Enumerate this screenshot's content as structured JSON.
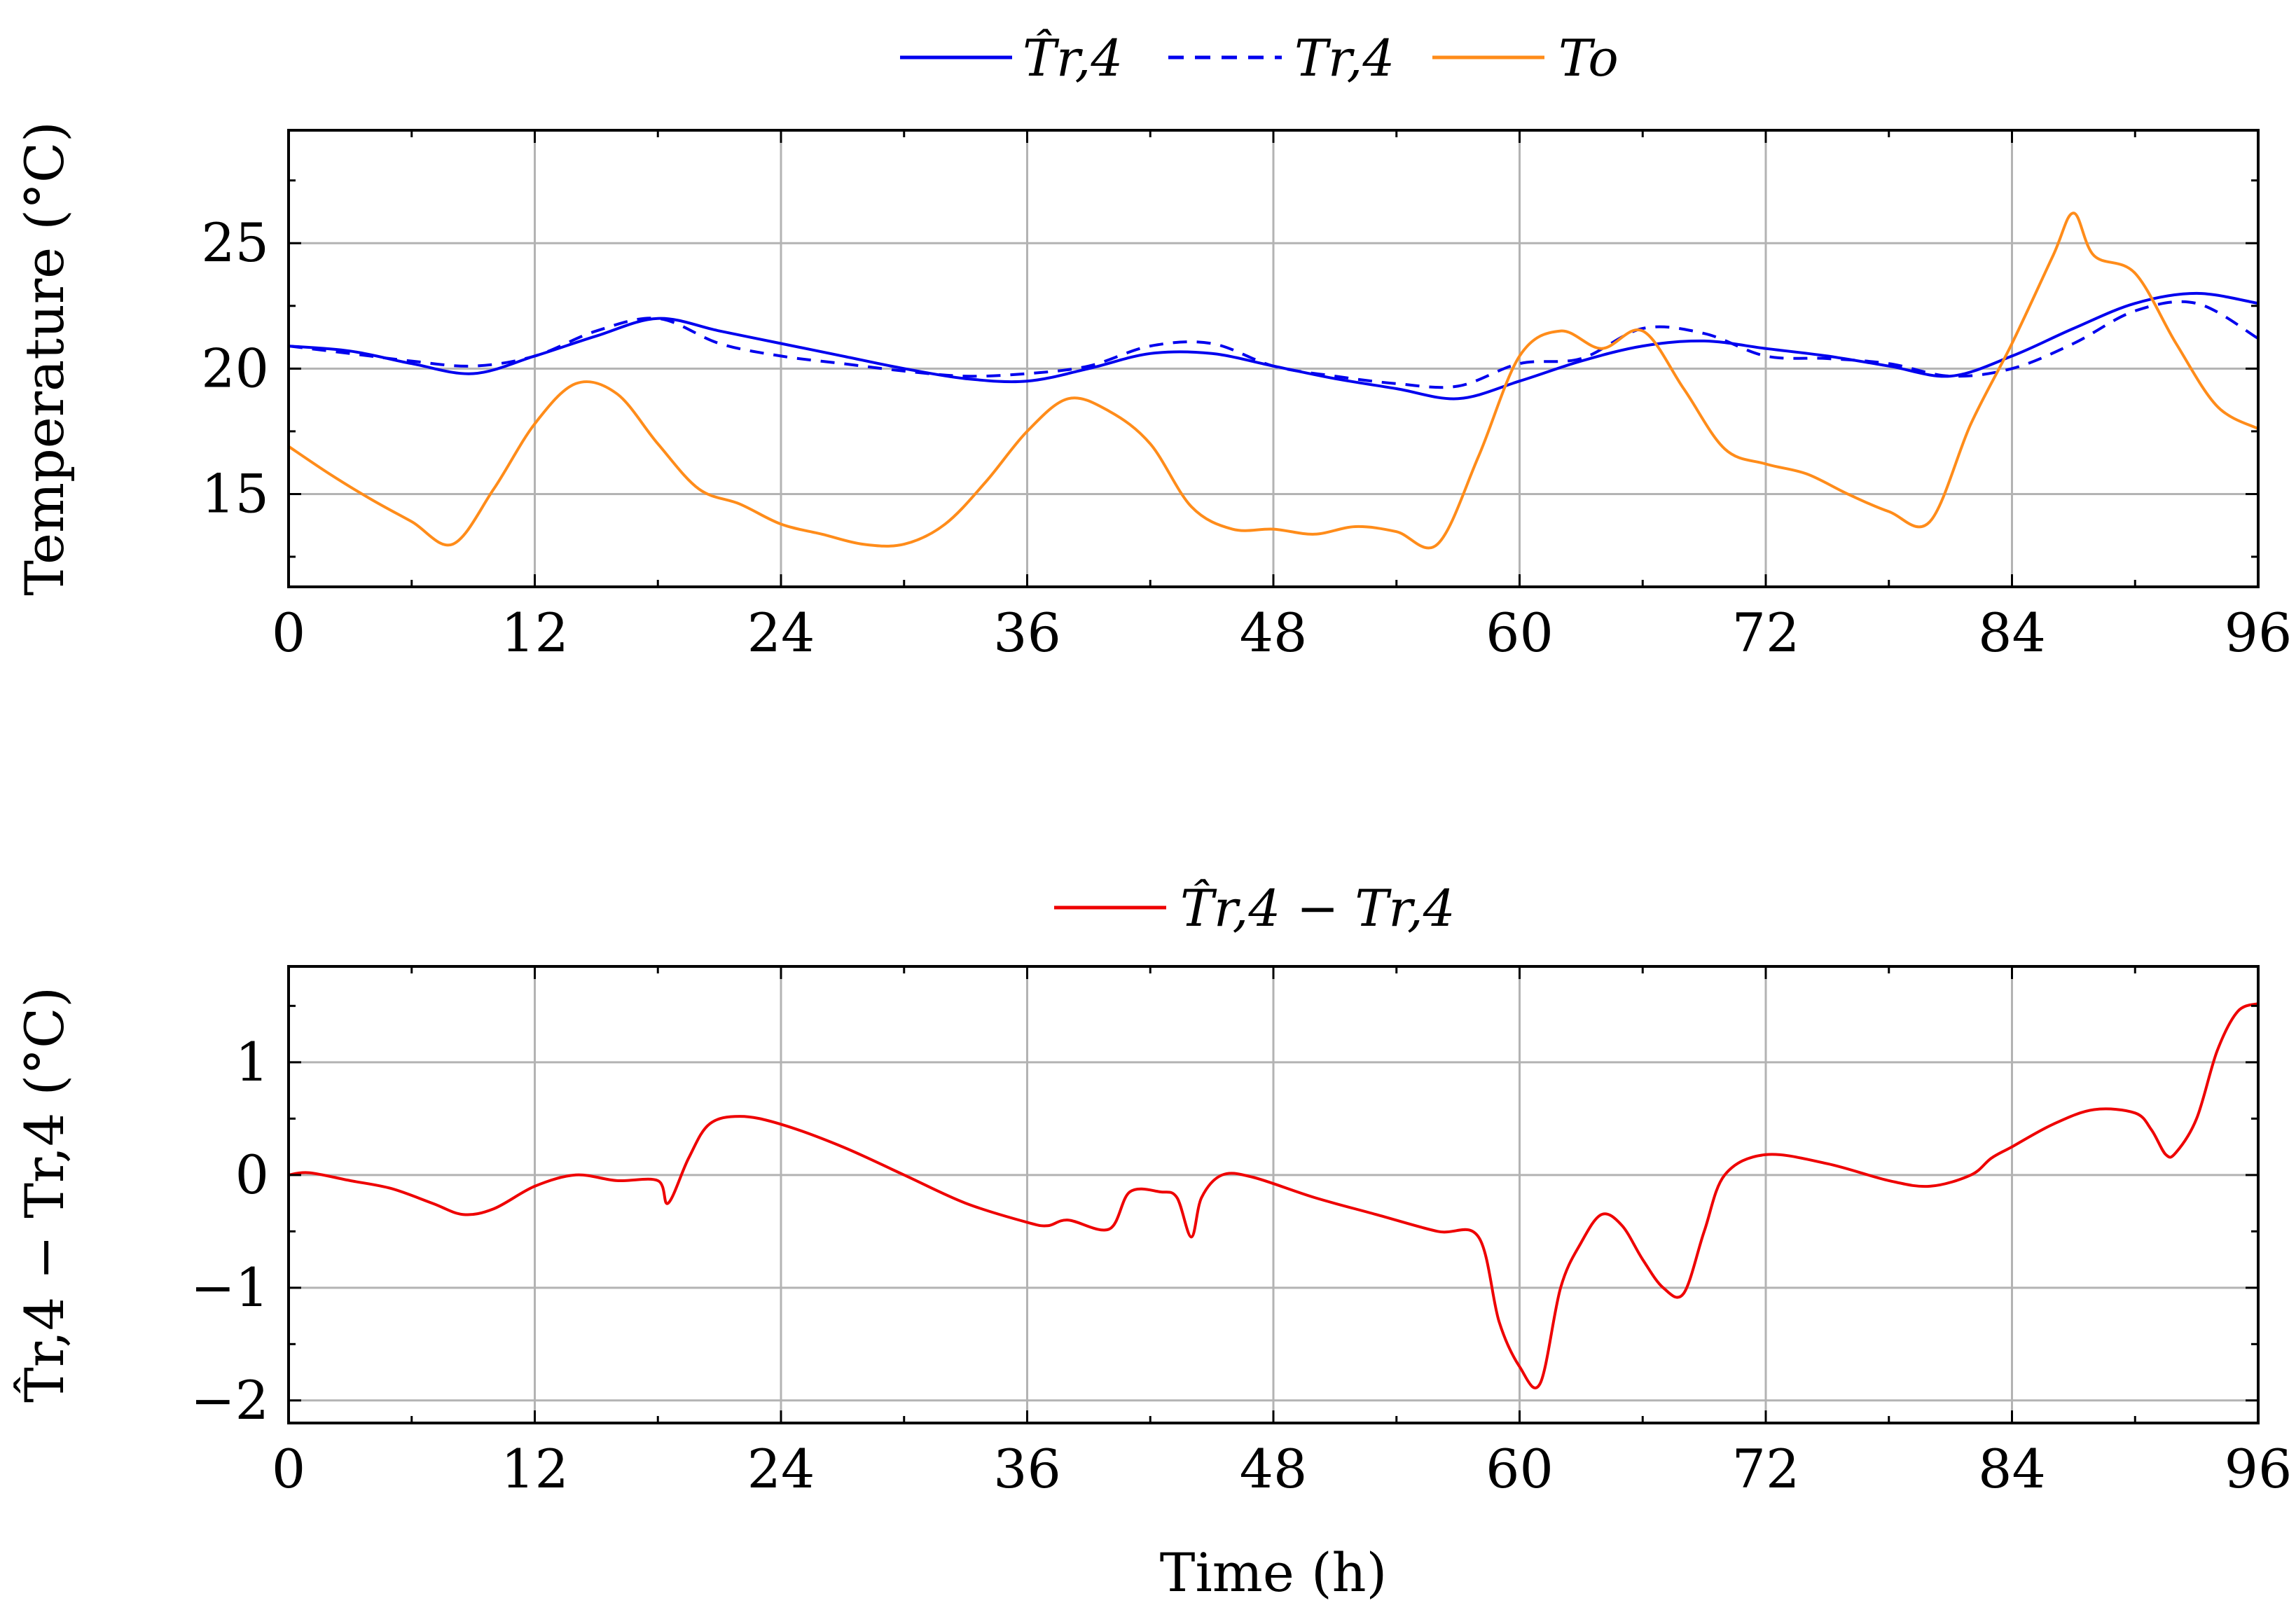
{
  "chart_data": [
    {
      "type": "line",
      "title": "",
      "xlabel": "",
      "ylabel": "Temperature (°C)",
      "xlim": [
        0,
        96
      ],
      "ylim": [
        11.3,
        29.5
      ],
      "xticks": [
        0,
        12,
        24,
        36,
        48,
        60,
        72,
        84,
        96
      ],
      "yticks": [
        15,
        20,
        25
      ],
      "ytick_labels": [
        "15",
        "20",
        "25"
      ],
      "grid": true,
      "legend": {
        "placement": "top-center",
        "entries": [
          "T̂r,4",
          "Tr,4",
          "To"
        ]
      },
      "series": [
        {
          "name": "T̂r,4",
          "color": "#0000ee",
          "style": "solid",
          "x": [
            0,
            3,
            6,
            9,
            12,
            15,
            18,
            21,
            24,
            27,
            30,
            33,
            36,
            39,
            42,
            45,
            48,
            51,
            54,
            57,
            60,
            63,
            66,
            69,
            72,
            75,
            78,
            81,
            84,
            87,
            90,
            93,
            96
          ],
          "y": [
            20.9,
            20.7,
            20.2,
            19.8,
            20.5,
            21.3,
            22.0,
            21.5,
            21.0,
            20.5,
            20.0,
            19.6,
            19.5,
            20.0,
            20.6,
            20.6,
            20.1,
            19.6,
            19.2,
            18.8,
            19.5,
            20.3,
            20.9,
            21.1,
            20.8,
            20.5,
            20.1,
            19.7,
            20.5,
            21.6,
            22.6,
            23.0,
            22.6
          ]
        },
        {
          "name": "Tr,4",
          "color": "#0000ee",
          "style": "dashed",
          "x": [
            0,
            3,
            6,
            9,
            12,
            15,
            18,
            21,
            24,
            27,
            30,
            33,
            36,
            39,
            42,
            45,
            48,
            51,
            54,
            57,
            60,
            63,
            66,
            69,
            72,
            75,
            78,
            81,
            84,
            87,
            90,
            93,
            96
          ],
          "y": [
            20.9,
            20.6,
            20.3,
            20.1,
            20.5,
            21.5,
            22.0,
            21.0,
            20.5,
            20.2,
            19.9,
            19.7,
            19.8,
            20.1,
            20.9,
            21.0,
            20.1,
            19.7,
            19.4,
            19.3,
            20.2,
            20.4,
            21.6,
            21.4,
            20.5,
            20.4,
            20.2,
            19.7,
            20.0,
            21.0,
            22.3,
            22.6,
            21.2
          ]
        },
        {
          "name": "To",
          "color": "#ff8c1a",
          "style": "solid",
          "x": [
            0,
            2,
            4,
            6,
            8,
            10,
            12,
            14,
            16,
            18,
            20,
            22,
            24,
            26,
            28,
            30,
            32,
            34,
            36,
            38,
            40,
            42,
            44,
            46,
            48,
            50,
            52,
            54,
            56,
            58,
            60,
            62,
            64,
            66,
            68,
            70,
            72,
            74,
            76,
            78,
            80,
            82,
            84,
            86,
            87,
            88,
            90,
            92,
            94,
            96
          ],
          "y": [
            16.9,
            15.8,
            14.8,
            13.9,
            13.0,
            15.2,
            17.8,
            19.4,
            19.0,
            17.0,
            15.2,
            14.6,
            13.8,
            13.4,
            13.0,
            13.0,
            13.8,
            15.5,
            17.5,
            18.8,
            18.3,
            17.0,
            14.5,
            13.6,
            13.6,
            13.4,
            13.7,
            13.5,
            13.0,
            16.5,
            20.5,
            21.5,
            20.8,
            21.5,
            19.2,
            16.8,
            16.2,
            15.8,
            15.0,
            14.3,
            13.9,
            17.8,
            21.0,
            24.5,
            26.2,
            24.5,
            23.8,
            21.0,
            18.5,
            17.6
          ]
        }
      ]
    },
    {
      "type": "line",
      "title": "",
      "xlabel": "Time (h)",
      "ylabel": "T̂r,4 − Tr,4 (°C)",
      "xlim": [
        0,
        96
      ],
      "ylim": [
        -2.2,
        1.85
      ],
      "xticks": [
        0,
        12,
        24,
        36,
        48,
        60,
        72,
        84,
        96
      ],
      "yticks": [
        -2,
        -1,
        0,
        1
      ],
      "ytick_labels": [
        "−2",
        "−1",
        "0",
        "1"
      ],
      "grid": true,
      "legend": {
        "placement": "top-center",
        "entries": [
          "T̂r,4 − Tr,4"
        ]
      },
      "series": [
        {
          "name": "T̂r,4 − Tr,4",
          "color": "#ee0000",
          "style": "solid",
          "x": [
            0,
            1,
            3,
            5,
            7,
            8.5,
            10,
            12,
            14,
            16,
            18,
            18.5,
            19.5,
            20.5,
            22,
            24,
            27,
            30,
            33,
            36,
            37,
            38,
            40,
            41,
            42.5,
            43.3,
            44,
            44.5,
            45.5,
            47,
            50,
            53,
            56,
            58,
            59,
            60,
            61,
            62,
            63,
            64,
            65,
            66,
            67,
            68,
            69,
            70,
            72,
            75,
            78,
            80,
            82,
            83,
            84,
            86,
            88,
            90,
            90.8,
            91.5,
            92,
            93,
            94,
            95,
            96
          ],
          "y": [
            0.0,
            0.02,
            -0.05,
            -0.12,
            -0.25,
            -0.35,
            -0.3,
            -0.1,
            0.0,
            -0.05,
            -0.05,
            -0.25,
            0.15,
            0.45,
            0.52,
            0.45,
            0.25,
            0.0,
            -0.25,
            -0.42,
            -0.45,
            -0.4,
            -0.48,
            -0.15,
            -0.15,
            -0.2,
            -0.55,
            -0.2,
            0.0,
            -0.02,
            -0.2,
            -0.35,
            -0.5,
            -0.55,
            -1.3,
            -1.7,
            -1.85,
            -1.0,
            -0.6,
            -0.35,
            -0.45,
            -0.75,
            -1.0,
            -1.05,
            -0.5,
            0.0,
            0.18,
            0.1,
            -0.05,
            -0.1,
            0.0,
            0.15,
            0.25,
            0.45,
            0.58,
            0.55,
            0.4,
            0.18,
            0.2,
            0.5,
            1.1,
            1.45,
            1.52
          ]
        }
      ]
    }
  ]
}
